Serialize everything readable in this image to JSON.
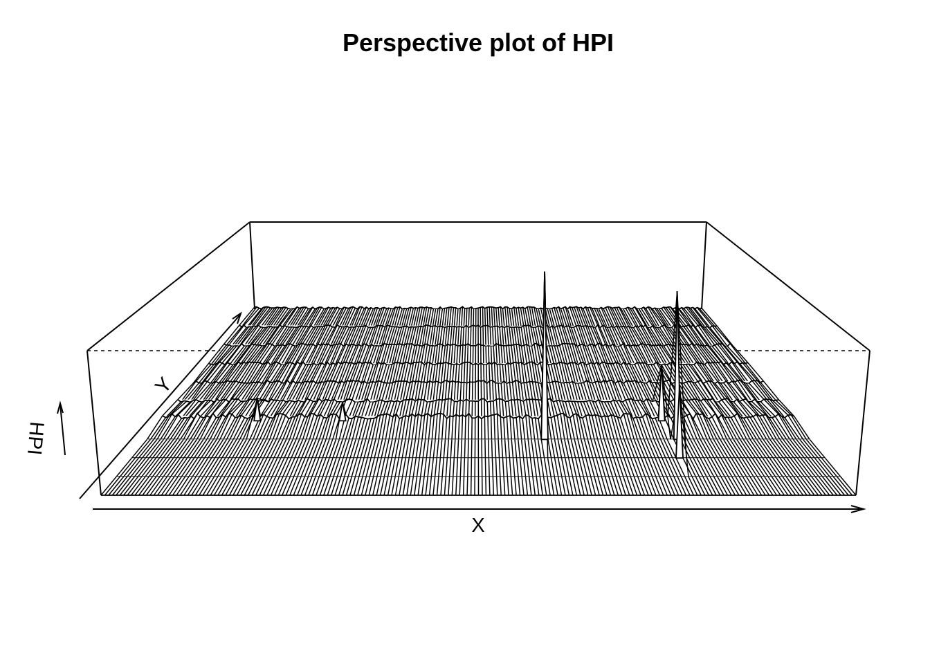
{
  "chart_data": {
    "type": "surface",
    "title": "Perspective plot of HPI",
    "xlabel": "X",
    "ylabel": "Y",
    "zlabel": "HPI",
    "grid": false,
    "legend": "none",
    "x_columns": 200,
    "y_rows": 10,
    "peaks": [
      {
        "x_index": 120,
        "y_index": 3,
        "relative_height": 0.85
      },
      {
        "x_index": 160,
        "y_index": 3,
        "relative_height": 0.75
      },
      {
        "x_index": 158,
        "y_index": 2,
        "relative_height": 0.35
      },
      {
        "x_index": 158,
        "y_index": 4,
        "relative_height": 0.3
      },
      {
        "x_index": 30,
        "y_index": 4,
        "relative_height": 0.12
      },
      {
        "x_index": 57,
        "y_index": 4,
        "relative_height": 0.1
      }
    ],
    "colors": {
      "line": "#000000",
      "surface": "#ffffff"
    }
  }
}
